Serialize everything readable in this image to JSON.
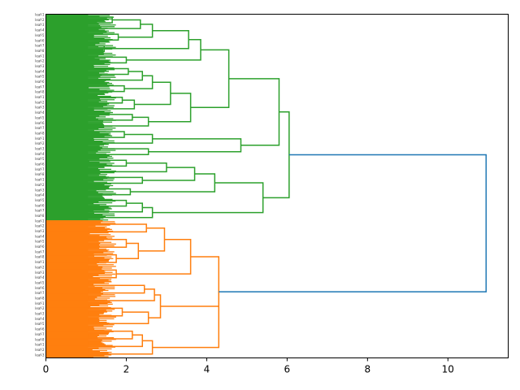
{
  "chart_data": {
    "type": "dendrogram",
    "orientation": "right",
    "title": "",
    "xlabel": "",
    "ylabel": "",
    "xlim": [
      0,
      11.5
    ],
    "x_ticks": [
      0,
      2,
      4,
      6,
      8,
      10
    ],
    "x_tick_labels": [
      "0",
      "2",
      "4",
      "6",
      "8",
      "10"
    ],
    "leaf_count": 400,
    "leaf_labels": [
      "leaf-1",
      "leaf-2",
      "leaf-3",
      "leaf-4",
      "leaf-5",
      "leaf-6",
      "leaf-7",
      "leaf-8"
    ],
    "colors": {
      "cluster_green": "#2ca02c",
      "cluster_orange": "#ff7f0e",
      "root_link": "#1f77b4"
    },
    "leaf_clusters": [
      {
        "name": "green",
        "color": "#2ca02c",
        "fraction": 0.6
      },
      {
        "name": "orange",
        "color": "#ff7f0e",
        "fraction": 0.4
      }
    ],
    "top_link": {
      "height": 10.95,
      "color": "#1f77b4",
      "children": [
        "green-top",
        "orange-top"
      ]
    },
    "links": [
      {
        "id": "g-a",
        "height": 1.65,
        "color": "#2ca02c",
        "children": [
          "leaf",
          "leaf"
        ]
      },
      {
        "id": "g-b",
        "height": 2.35,
        "color": "#2ca02c",
        "children": [
          "g-a",
          "leaf"
        ]
      },
      {
        "id": "g-c",
        "height": 1.8,
        "color": "#2ca02c",
        "children": [
          "leaf",
          "leaf"
        ]
      },
      {
        "id": "g-d",
        "height": 2.65,
        "color": "#2ca02c",
        "children": [
          "g-b",
          "g-c"
        ]
      },
      {
        "id": "g-e",
        "height": 1.45,
        "color": "#2ca02c",
        "children": [
          "leaf",
          "leaf"
        ]
      },
      {
        "id": "g-f",
        "height": 3.55,
        "color": "#2ca02c",
        "children": [
          "g-d",
          "g-e"
        ]
      },
      {
        "id": "g-g",
        "height": 2.0,
        "color": "#2ca02c",
        "children": [
          "leaf",
          "leaf"
        ]
      },
      {
        "id": "g-h",
        "height": 3.85,
        "color": "#2ca02c",
        "children": [
          "g-f",
          "g-g"
        ]
      },
      {
        "id": "g-i",
        "height": 2.05,
        "color": "#2ca02c",
        "children": [
          "leaf",
          "leaf"
        ]
      },
      {
        "id": "g-j",
        "height": 2.4,
        "color": "#2ca02c",
        "children": [
          "g-i",
          "leaf"
        ]
      },
      {
        "id": "g-k",
        "height": 1.95,
        "color": "#2ca02c",
        "children": [
          "leaf",
          "leaf"
        ]
      },
      {
        "id": "g-l",
        "height": 2.65,
        "color": "#2ca02c",
        "children": [
          "g-j",
          "g-k"
        ]
      },
      {
        "id": "g-m",
        "height": 1.9,
        "color": "#2ca02c",
        "children": [
          "leaf",
          "leaf"
        ]
      },
      {
        "id": "g-n",
        "height": 2.2,
        "color": "#2ca02c",
        "children": [
          "g-m",
          "leaf"
        ]
      },
      {
        "id": "g-o",
        "height": 3.1,
        "color": "#2ca02c",
        "children": [
          "g-l",
          "g-n"
        ]
      },
      {
        "id": "g-p",
        "height": 2.15,
        "color": "#2ca02c",
        "children": [
          "leaf",
          "leaf"
        ]
      },
      {
        "id": "g-q",
        "height": 2.55,
        "color": "#2ca02c",
        "children": [
          "g-p",
          "leaf"
        ]
      },
      {
        "id": "g-r",
        "height": 3.6,
        "color": "#2ca02c",
        "children": [
          "g-o",
          "g-q"
        ]
      },
      {
        "id": "g-s",
        "height": 4.55,
        "color": "#2ca02c",
        "children": [
          "g-h",
          "g-r"
        ]
      },
      {
        "id": "g-t",
        "height": 1.95,
        "color": "#2ca02c",
        "children": [
          "leaf",
          "leaf"
        ]
      },
      {
        "id": "g-u",
        "height": 2.65,
        "color": "#2ca02c",
        "children": [
          "g-t",
          "leaf"
        ]
      },
      {
        "id": "g-v",
        "height": 2.55,
        "color": "#2ca02c",
        "children": [
          "leaf",
          "leaf"
        ]
      },
      {
        "id": "g-w",
        "height": 4.85,
        "color": "#2ca02c",
        "children": [
          "g-u",
          "g-v"
        ]
      },
      {
        "id": "g-x",
        "height": 5.8,
        "color": "#2ca02c",
        "children": [
          "g-s",
          "g-w"
        ]
      },
      {
        "id": "g-y",
        "height": 2.0,
        "color": "#2ca02c",
        "children": [
          "leaf",
          "leaf"
        ]
      },
      {
        "id": "g-z",
        "height": 3.0,
        "color": "#2ca02c",
        "children": [
          "g-y",
          "leaf"
        ]
      },
      {
        "id": "g-aa",
        "height": 2.4,
        "color": "#2ca02c",
        "children": [
          "leaf",
          "leaf"
        ]
      },
      {
        "id": "g-ab",
        "height": 3.7,
        "color": "#2ca02c",
        "children": [
          "g-z",
          "g-aa"
        ]
      },
      {
        "id": "g-ac",
        "height": 2.1,
        "color": "#2ca02c",
        "children": [
          "leaf",
          "leaf"
        ]
      },
      {
        "id": "g-ad",
        "height": 4.2,
        "color": "#2ca02c",
        "children": [
          "g-ab",
          "g-ac"
        ]
      },
      {
        "id": "g-ae",
        "height": 2.0,
        "color": "#2ca02c",
        "children": [
          "leaf",
          "leaf"
        ]
      },
      {
        "id": "g-af",
        "height": 2.4,
        "color": "#2ca02c",
        "children": [
          "g-ae",
          "leaf"
        ]
      },
      {
        "id": "g-ag",
        "height": 2.65,
        "color": "#2ca02c",
        "children": [
          "g-af",
          "leaf"
        ]
      },
      {
        "id": "g-ah",
        "height": 5.4,
        "color": "#2ca02c",
        "children": [
          "g-ad",
          "g-ag"
        ]
      },
      {
        "id": "g-top",
        "height": 6.05,
        "color": "#2ca02c",
        "children": [
          "g-x",
          "g-ah"
        ]
      },
      {
        "id": "o-a",
        "height": 2.5,
        "color": "#ff7f0e",
        "children": [
          "leaf",
          "leaf"
        ]
      },
      {
        "id": "o-b",
        "height": 2.0,
        "color": "#ff7f0e",
        "children": [
          "leaf",
          "leaf"
        ]
      },
      {
        "id": "o-c",
        "height": 1.75,
        "color": "#ff7f0e",
        "children": [
          "leaf",
          "leaf"
        ]
      },
      {
        "id": "o-d",
        "height": 2.3,
        "color": "#ff7f0e",
        "children": [
          "o-b",
          "o-c"
        ]
      },
      {
        "id": "o-e",
        "height": 2.95,
        "color": "#ff7f0e",
        "children": [
          "o-a",
          "o-d"
        ]
      },
      {
        "id": "o-f",
        "height": 1.75,
        "color": "#ff7f0e",
        "children": [
          "leaf",
          "leaf"
        ]
      },
      {
        "id": "o-g",
        "height": 3.6,
        "color": "#ff7f0e",
        "children": [
          "o-e",
          "o-f"
        ]
      },
      {
        "id": "o-h",
        "height": 2.45,
        "color": "#ff7f0e",
        "children": [
          "leaf",
          "leaf"
        ]
      },
      {
        "id": "o-i",
        "height": 2.7,
        "color": "#ff7f0e",
        "children": [
          "o-h",
          "leaf"
        ]
      },
      {
        "id": "o-j",
        "height": 1.9,
        "color": "#ff7f0e",
        "children": [
          "leaf",
          "leaf"
        ]
      },
      {
        "id": "o-k",
        "height": 2.55,
        "color": "#ff7f0e",
        "children": [
          "o-j",
          "leaf"
        ]
      },
      {
        "id": "o-l",
        "height": 2.85,
        "color": "#ff7f0e",
        "children": [
          "o-i",
          "o-k"
        ]
      },
      {
        "id": "o-m",
        "height": 2.15,
        "color": "#ff7f0e",
        "children": [
          "leaf",
          "leaf"
        ]
      },
      {
        "id": "o-n",
        "height": 2.4,
        "color": "#ff7f0e",
        "children": [
          "o-m",
          "leaf"
        ]
      },
      {
        "id": "o-o",
        "height": 2.65,
        "color": "#ff7f0e",
        "children": [
          "o-n",
          "leaf"
        ]
      },
      {
        "id": "o-p",
        "height": 4.3,
        "color": "#ff7f0e",
        "children": [
          "o-l",
          "o-o"
        ]
      },
      {
        "id": "o-top",
        "height": 4.3,
        "color": "#ff7f0e",
        "children": [
          "o-g",
          "o-p"
        ]
      }
    ]
  }
}
